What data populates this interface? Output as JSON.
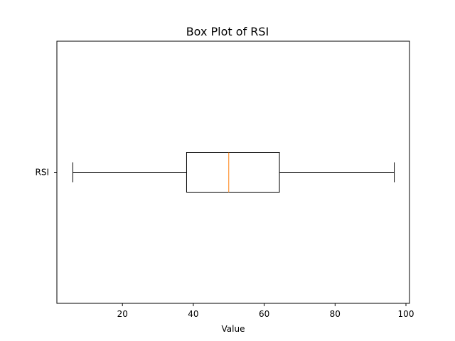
{
  "chart_data": {
    "type": "box",
    "title": "Box Plot of RSI",
    "xlabel": "Value",
    "ylabel": "",
    "orientation": "horizontal",
    "xlim": [
      1.5,
      101
    ],
    "xticks": [
      20,
      40,
      60,
      80,
      100
    ],
    "grid": false,
    "categories": [
      "RSI"
    ],
    "boxes": [
      {
        "name": "RSI",
        "whisker_low": 6,
        "q1": 38.1,
        "median": 50,
        "q3": 64.3,
        "whisker_high": 96.7
      }
    ],
    "colors": {
      "box": "#000000",
      "median": "#ff7f0e"
    }
  }
}
